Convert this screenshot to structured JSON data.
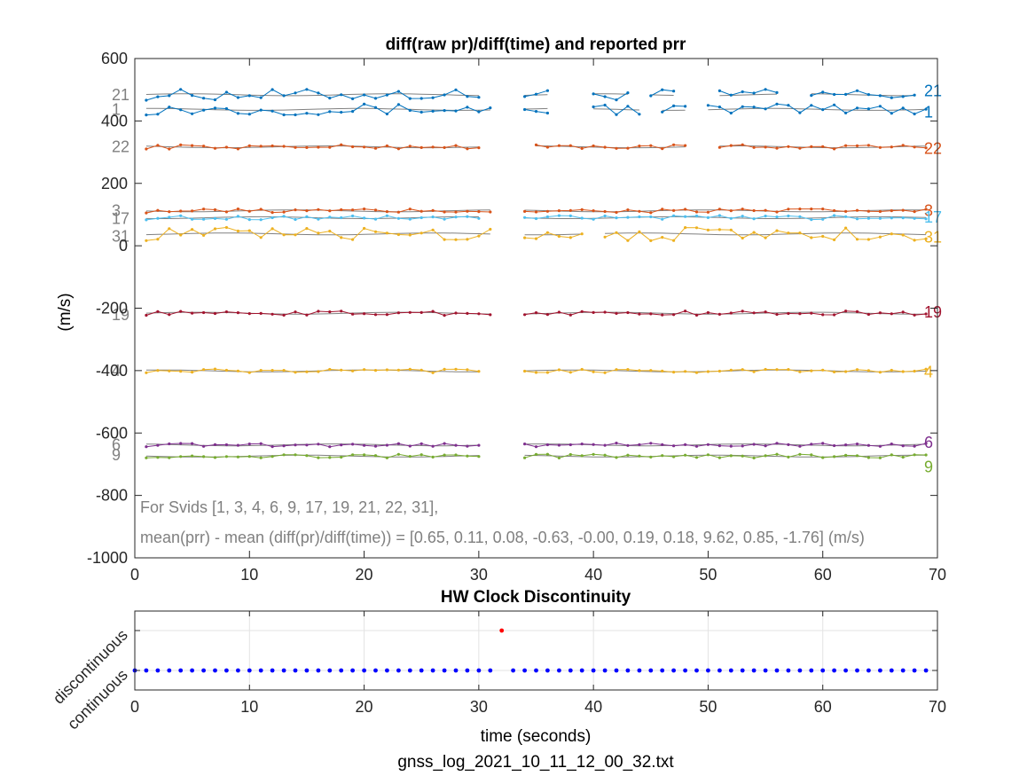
{
  "chart_data": [
    {
      "type": "line",
      "title": "diff(raw pr)/diff(time) and reported prr",
      "xlabel": "",
      "ylabel": "(m/s)",
      "xlim": [
        0,
        70
      ],
      "ylim": [
        -1000,
        600
      ],
      "xticks": [
        "0",
        "10",
        "20",
        "30",
        "40",
        "50",
        "60",
        "70"
      ],
      "yticks": [
        "-1000",
        "-800",
        "-600",
        "-400",
        "-200",
        "0",
        "200",
        "400",
        "600"
      ],
      "grid": false,
      "annotation_line1": "For Svids [1, 3, 4, 6, 9, 17, 19, 21, 22, 31],",
      "annotation_line2": "mean(prr) - mean (diff(pr)/diff(time)) = [0.65, 0.11, 0.08, -0.63, -0.00, 0.19, 0.18, 9.62, 0.85, -1.76] (m/s)",
      "series": [
        {
          "name": "21",
          "color": "#0072BD",
          "level": 484,
          "label_left_y": 484,
          "label_right_y": 496,
          "segments": [
            [
              1,
              30
            ],
            [
              34,
              36
            ],
            [
              40,
              43
            ],
            [
              45,
              47
            ],
            [
              51,
              56
            ],
            [
              59,
              68
            ]
          ]
        },
        {
          "name": "1",
          "color": "#0072BD",
          "level": 437,
          "label_left_y": 437,
          "label_right_y": 428,
          "segments": [
            [
              1,
              31
            ],
            [
              34,
              36
            ],
            [
              40,
              44
            ],
            [
              46,
              48
            ],
            [
              50,
              69
            ]
          ]
        },
        {
          "name": "22",
          "color": "#D95319",
          "level": 317,
          "label_left_y": 317,
          "label_right_y": 312,
          "segments": [
            [
              1,
              30
            ],
            [
              35,
              48
            ],
            [
              51,
              69
            ]
          ]
        },
        {
          "name": "3",
          "color": "#D95319",
          "level": 112,
          "label_left_y": 112,
          "label_right_y": 112,
          "segments": [
            [
              1,
              31
            ],
            [
              34,
              69
            ]
          ]
        },
        {
          "name": "17",
          "color": "#4DBEEE",
          "level": 90,
          "label_left_y": 87,
          "label_right_y": 92,
          "segments": [
            [
              1,
              30
            ],
            [
              34,
              69
            ]
          ]
        },
        {
          "name": "31",
          "color": "#EDB120",
          "level": 38,
          "label_left_y": 30,
          "label_right_y": 27,
          "segments": [
            [
              1,
              31
            ],
            [
              34,
              39
            ],
            [
              41,
              69
            ]
          ]
        },
        {
          "name": "19",
          "color": "#A2142F",
          "level": -216,
          "label_left_y": -222,
          "label_right_y": -213,
          "segments": [
            [
              1,
              31
            ],
            [
              34,
              69
            ]
          ]
        },
        {
          "name": "4",
          "color": "#EDB120",
          "level": -401,
          "label_left_y": -401,
          "label_right_y": -404,
          "segments": [
            [
              1,
              30
            ],
            [
              34,
              69
            ]
          ]
        },
        {
          "name": "6",
          "color": "#7E2F8E",
          "level": -638,
          "label_left_y": -638,
          "label_right_y": -630,
          "segments": [
            [
              1,
              30
            ],
            [
              34,
              69
            ]
          ]
        },
        {
          "name": "9",
          "color": "#77AC30",
          "level": -674,
          "label_left_y": -671,
          "label_right_y": -709,
          "segments": [
            [
              1,
              30
            ],
            [
              34,
              69
            ]
          ]
        }
      ]
    },
    {
      "type": "scatter",
      "title": "HW Clock Discontinuity",
      "xlabel": "time (seconds)",
      "ylabel": "",
      "xlim": [
        0,
        70
      ],
      "xticks": [
        "0",
        "10",
        "20",
        "30",
        "40",
        "50",
        "60",
        "70"
      ],
      "yticks": [
        "continuous",
        "discontinuous"
      ],
      "grid": true,
      "series": [
        {
          "color": "#0000FF",
          "y": 0,
          "x": [
            0,
            1,
            2,
            3,
            4,
            5,
            6,
            7,
            8,
            9,
            10,
            11,
            12,
            13,
            14,
            15,
            16,
            17,
            18,
            19,
            20,
            21,
            22,
            23,
            24,
            25,
            26,
            27,
            28,
            29,
            30,
            31,
            33,
            34,
            35,
            36,
            37,
            38,
            39,
            40,
            41,
            42,
            43,
            44,
            45,
            46,
            47,
            48,
            49,
            50,
            51,
            52,
            53,
            54,
            55,
            56,
            57,
            58,
            59,
            60,
            61,
            62,
            63,
            64,
            65,
            66,
            67,
            68,
            69
          ]
        },
        {
          "color": "#FF0000",
          "y": 1,
          "x": [
            32
          ]
        }
      ]
    }
  ],
  "footer": {
    "filename": "gnss_log_2021_10_11_12_00_32.txt"
  }
}
